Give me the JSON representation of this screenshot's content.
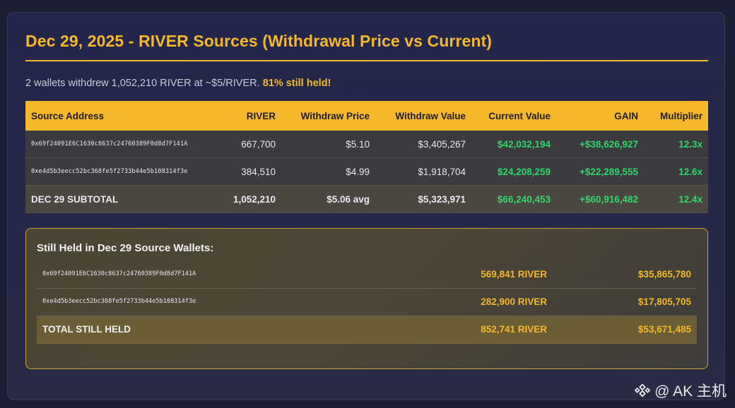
{
  "title": "Dec 29, 2025 - RIVER Sources (Withdrawal Price vs Current)",
  "subtitle": {
    "text": "2 wallets withdrew 1,052,210 RIVER at ~$5/RIVER.",
    "highlight": "81% still held!"
  },
  "table": {
    "headers": [
      "Source Address",
      "RIVER",
      "Withdraw Price",
      "Withdraw Value",
      "Current Value",
      "GAIN",
      "Multiplier"
    ],
    "rows": [
      {
        "address": "0x69f24091E6C1630c8637c24760389F0d8d7F141A",
        "river": "667,700",
        "price": "$5.10",
        "withdraw_value": "$3,405,267",
        "current_value": "$42,032,194",
        "gain": "+$38,626,927",
        "multiplier": "12.3x"
      },
      {
        "address": "0xe4d5b3eecc52bc368fe5f2733b44e5b108314f3e",
        "river": "384,510",
        "price": "$4.99",
        "withdraw_value": "$1,918,704",
        "current_value": "$24,208,259",
        "gain": "+$22,289,555",
        "multiplier": "12.6x"
      }
    ],
    "subtotal": {
      "label": "DEC 29 SUBTOTAL",
      "river": "1,052,210",
      "price": "$5.06 avg",
      "withdraw_value": "$5,323,971",
      "current_value": "$66,240,453",
      "gain": "+$60,916,482",
      "multiplier": "12.4x"
    }
  },
  "held": {
    "title": "Still Held in Dec 29 Source Wallets:",
    "rows": [
      {
        "address": "0x69f24091E6C1630c8637c24760389F0d8d7F141A",
        "amount": "569,841 RIVER",
        "value": "$35,865,780"
      },
      {
        "address": "0xe4d5b3eecc52bc368fe5f2733b44e5b108314f3e",
        "amount": "282,900 RIVER",
        "value": "$17,805,705"
      }
    ],
    "total": {
      "label": "TOTAL STILL HELD",
      "amount": "852,741 RIVER",
      "value": "$53,671,485"
    }
  },
  "watermark": {
    "text": "@ AK 主机",
    "icon": "binance-logo-icon"
  },
  "colors": {
    "accent": "#f5b82b",
    "gain": "#2fd86b",
    "background": "#1b1e33"
  }
}
